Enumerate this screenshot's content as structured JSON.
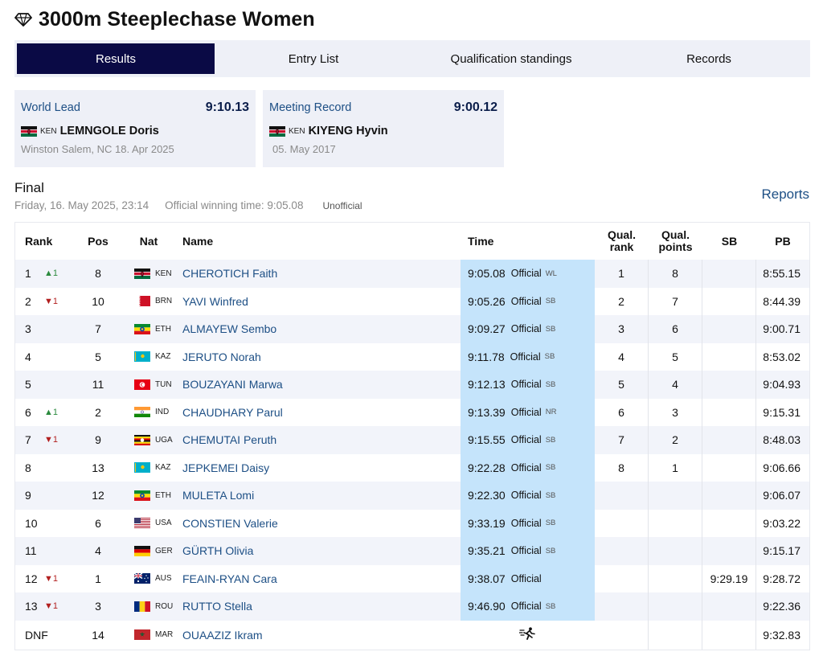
{
  "page": {
    "title": "3000m Steeplechase Women",
    "title_icon": "diamond-icon"
  },
  "tabs": [
    {
      "label": "Results",
      "active": true
    },
    {
      "label": "Entry List",
      "active": false
    },
    {
      "label": "Qualification standings",
      "active": false
    },
    {
      "label": "Records",
      "active": false
    }
  ],
  "records": [
    {
      "label": "World Lead",
      "value": "9:10.13",
      "nat": "KEN",
      "athlete": "LEMNGOLE Doris",
      "detail": "Winston Salem, NC 18. Apr 2025"
    },
    {
      "label": "Meeting Record",
      "value": "9:00.12",
      "nat": "KEN",
      "athlete": "KIYENG Hyvin",
      "detail": "05. May 2017"
    }
  ],
  "final": {
    "title": "Final",
    "date": "Friday, 16. May 2025, 23:14",
    "official_time": "Official winning time: 9:05.08",
    "status": "Unofficial",
    "reports_label": "Reports"
  },
  "table": {
    "headers": {
      "rank": "Rank",
      "pos": "Pos",
      "nat": "Nat",
      "name": "Name",
      "time": "Time",
      "qual_rank": "Qual. rank",
      "qual_points": "Qual. points",
      "sb": "SB",
      "pb": "PB"
    },
    "rows": [
      {
        "rank": "1",
        "change": "▲1",
        "dir": "up",
        "pos": "8",
        "nat": "KEN",
        "name": "CHEROTICH Faith",
        "time": "9:05.08",
        "status": "Official",
        "tag": "WL",
        "qrank": "1",
        "qpts": "8",
        "sb": "",
        "pb": "8:55.15"
      },
      {
        "rank": "2",
        "change": "▼1",
        "dir": "down",
        "pos": "10",
        "nat": "BRN",
        "name": "YAVI Winfred",
        "time": "9:05.26",
        "status": "Official",
        "tag": "SB",
        "qrank": "2",
        "qpts": "7",
        "sb": "",
        "pb": "8:44.39"
      },
      {
        "rank": "3",
        "change": "",
        "dir": "",
        "pos": "7",
        "nat": "ETH",
        "name": "ALMAYEW Sembo",
        "time": "9:09.27",
        "status": "Official",
        "tag": "SB",
        "qrank": "3",
        "qpts": "6",
        "sb": "",
        "pb": "9:00.71"
      },
      {
        "rank": "4",
        "change": "",
        "dir": "",
        "pos": "5",
        "nat": "KAZ",
        "name": "JERUTO Norah",
        "time": "9:11.78",
        "status": "Official",
        "tag": "SB",
        "qrank": "4",
        "qpts": "5",
        "sb": "",
        "pb": "8:53.02"
      },
      {
        "rank": "5",
        "change": "",
        "dir": "",
        "pos": "11",
        "nat": "TUN",
        "name": "BOUZAYANI Marwa",
        "time": "9:12.13",
        "status": "Official",
        "tag": "SB",
        "qrank": "5",
        "qpts": "4",
        "sb": "",
        "pb": "9:04.93"
      },
      {
        "rank": "6",
        "change": "▲1",
        "dir": "up",
        "pos": "2",
        "nat": "IND",
        "name": "CHAUDHARY Parul",
        "time": "9:13.39",
        "status": "Official",
        "tag": "NR",
        "qrank": "6",
        "qpts": "3",
        "sb": "",
        "pb": "9:15.31"
      },
      {
        "rank": "7",
        "change": "▼1",
        "dir": "down",
        "pos": "9",
        "nat": "UGA",
        "name": "CHEMUTAI Peruth",
        "time": "9:15.55",
        "status": "Official",
        "tag": "SB",
        "qrank": "7",
        "qpts": "2",
        "sb": "",
        "pb": "8:48.03"
      },
      {
        "rank": "8",
        "change": "",
        "dir": "",
        "pos": "13",
        "nat": "KAZ",
        "name": "JEPKEMEI Daisy",
        "time": "9:22.28",
        "status": "Official",
        "tag": "SB",
        "qrank": "8",
        "qpts": "1",
        "sb": "",
        "pb": "9:06.66"
      },
      {
        "rank": "9",
        "change": "",
        "dir": "",
        "pos": "12",
        "nat": "ETH",
        "name": "MULETA Lomi",
        "time": "9:22.30",
        "status": "Official",
        "tag": "SB",
        "qrank": "",
        "qpts": "",
        "sb": "",
        "pb": "9:06.07"
      },
      {
        "rank": "10",
        "change": "",
        "dir": "",
        "pos": "6",
        "nat": "USA",
        "name": "CONSTIEN Valerie",
        "time": "9:33.19",
        "status": "Official",
        "tag": "SB",
        "qrank": "",
        "qpts": "",
        "sb": "",
        "pb": "9:03.22"
      },
      {
        "rank": "11",
        "change": "",
        "dir": "",
        "pos": "4",
        "nat": "GER",
        "name": "GÜRTH Olivia",
        "time": "9:35.21",
        "status": "Official",
        "tag": "SB",
        "qrank": "",
        "qpts": "",
        "sb": "",
        "pb": "9:15.17"
      },
      {
        "rank": "12",
        "change": "▼1",
        "dir": "down",
        "pos": "1",
        "nat": "AUS",
        "name": "FEAIN-RYAN Cara",
        "time": "9:38.07",
        "status": "Official",
        "tag": "",
        "qrank": "",
        "qpts": "",
        "sb": "9:29.19",
        "pb": "9:28.72"
      },
      {
        "rank": "13",
        "change": "▼1",
        "dir": "down",
        "pos": "3",
        "nat": "ROU",
        "name": "RUTTO Stella",
        "time": "9:46.90",
        "status": "Official",
        "tag": "SB",
        "qrank": "",
        "qpts": "",
        "sb": "",
        "pb": "9:22.36"
      },
      {
        "rank": "DNF",
        "change": "",
        "dir": "",
        "pos": "14",
        "nat": "MAR",
        "name": "OUAAZIZ Ikram",
        "time": "",
        "status": "",
        "tag": "",
        "qrank": "",
        "qpts": "",
        "sb": "",
        "pb": "9:32.83",
        "time_icon": "running-athlete-icon"
      }
    ]
  },
  "colors": {
    "tab_active_bg": "#0a0a45",
    "link_blue": "#1d4f85",
    "time_cell_bg": "#c5e4fb",
    "row_alt_bg": "#f2f4fa",
    "rank_up": "#2b8a3e",
    "rank_down": "#b21f1f"
  }
}
